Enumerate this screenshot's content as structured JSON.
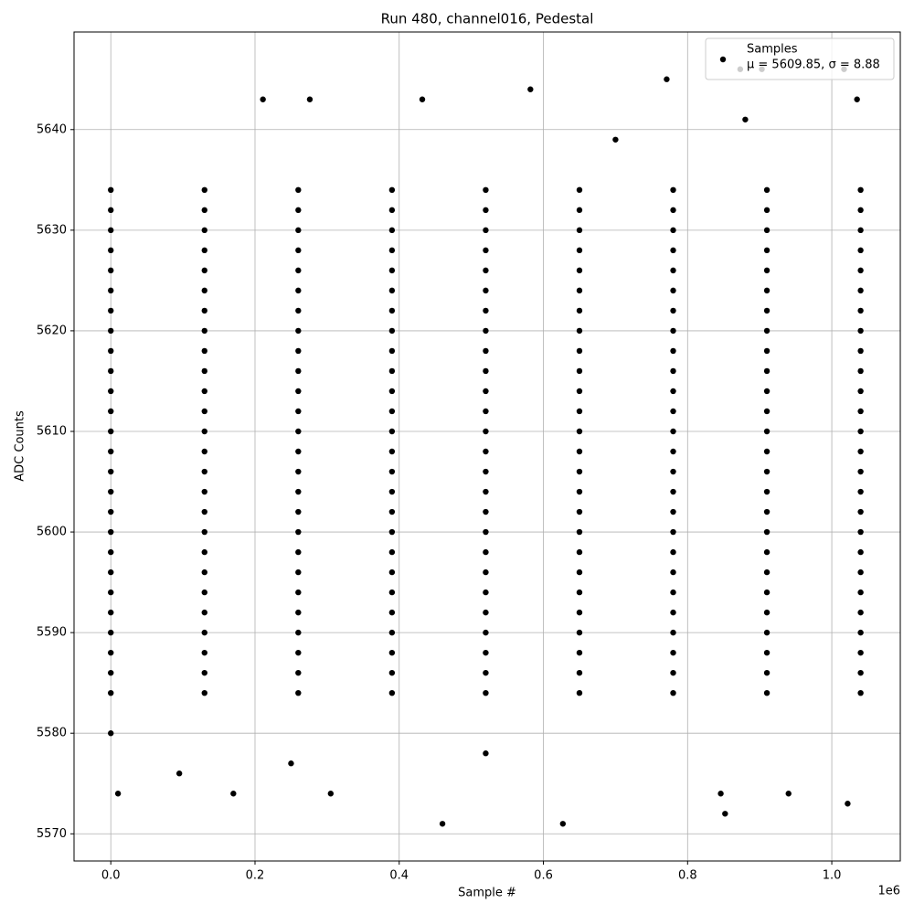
{
  "chart_data": {
    "type": "scatter",
    "title": "Run 480, channel016, Pedestal",
    "xlabel": "Sample #",
    "ylabel": "ADC Counts",
    "x_offset_label": "1e6",
    "xlim": [
      -51000,
      1095000
    ],
    "ylim": [
      5567.3,
      5649.7
    ],
    "xticks": [
      {
        "value": 0,
        "label": "0.0"
      },
      {
        "value": 200000,
        "label": "0.2"
      },
      {
        "value": 400000,
        "label": "0.4"
      },
      {
        "value": 600000,
        "label": "0.6"
      },
      {
        "value": 800000,
        "label": "0.8"
      },
      {
        "value": 1000000,
        "label": "1.0"
      }
    ],
    "yticks": [
      5570,
      5580,
      5590,
      5600,
      5610,
      5620,
      5630,
      5640
    ],
    "grid": true,
    "legend": "upper right",
    "annotation": "μ = 5609.85, σ = 8.88",
    "series": [
      {
        "name": "Samples",
        "color": "#000000",
        "x": [
          10000,
          460000,
          627000,
          852000,
          1022000,
          170000,
          305000,
          940000,
          846000,
          771000,
          582000,
          873000,
          903000,
          1017000,
          211000,
          276000,
          432000,
          1035000,
          0,
          95000,
          250000,
          520000,
          700000,
          880000,
          0,
          130000,
          260000,
          390000,
          520000,
          650000,
          780000,
          910000,
          1040000,
          0,
          130000,
          260000,
          390000,
          520000,
          650000,
          780000,
          910000,
          1040000,
          0,
          130000,
          260000,
          390000,
          520000,
          650000,
          780000,
          910000,
          1040000,
          0,
          130000,
          260000,
          390000,
          520000,
          650000,
          780000,
          910000,
          1040000,
          0,
          130000,
          260000,
          390000,
          520000,
          650000,
          780000,
          910000,
          1040000,
          0,
          130000,
          260000,
          390000,
          520000,
          650000,
          780000,
          910000,
          1040000,
          0,
          130000,
          260000,
          390000,
          520000,
          650000,
          780000,
          910000,
          1040000,
          0,
          130000,
          260000,
          390000,
          520000,
          650000,
          780000,
          910000,
          1040000,
          0,
          130000,
          260000,
          390000,
          520000,
          650000,
          780000,
          910000,
          1040000,
          0,
          130000,
          260000,
          390000,
          520000,
          650000,
          780000,
          910000,
          1040000,
          0,
          130000,
          260000,
          390000,
          520000,
          650000,
          780000,
          910000,
          1040000,
          0,
          130000,
          260000,
          390000,
          520000,
          650000,
          780000,
          910000,
          1040000,
          0,
          130000,
          260000,
          390000,
          520000,
          650000,
          780000,
          910000,
          1040000,
          0,
          130000,
          260000,
          390000,
          520000,
          650000,
          780000,
          910000,
          1040000,
          0,
          130000,
          260000,
          390000,
          520000,
          650000,
          780000,
          910000,
          1040000,
          0,
          130000,
          260000,
          390000,
          520000,
          650000,
          780000,
          910000,
          1040000,
          0,
          130000,
          260000,
          390000,
          520000,
          650000,
          780000,
          910000,
          1040000,
          0,
          130000,
          260000,
          390000,
          520000,
          650000,
          780000,
          910000,
          1040000,
          0,
          130000,
          260000,
          390000,
          520000,
          650000,
          780000,
          910000,
          1040000,
          0,
          130000,
          260000,
          390000,
          520000,
          650000,
          780000,
          910000,
          1040000,
          0,
          130000,
          260000,
          390000,
          520000,
          650000,
          780000,
          910000,
          1040000,
          0,
          130000,
          260000,
          390000,
          520000,
          650000,
          780000,
          910000,
          1040000,
          0,
          130000,
          260000,
          390000,
          520000,
          650000,
          780000,
          910000,
          1040000,
          0,
          130000,
          260000,
          390000,
          520000,
          650000,
          780000,
          910000,
          1040000,
          0,
          130000,
          260000,
          390000,
          520000,
          650000,
          780000,
          910000,
          1040000,
          0,
          130000,
          260000,
          390000,
          520000,
          650000,
          780000,
          910000,
          1040000
        ],
        "values": [
          5574,
          5571,
          5571,
          5572,
          5573,
          5574,
          5574,
          5574,
          5574,
          5645,
          5644,
          5646,
          5646,
          5646,
          5643,
          5643,
          5643,
          5643,
          5580,
          5576,
          5577,
          5578,
          5639,
          5641,
          5584,
          5584,
          5584,
          5584,
          5584,
          5584,
          5584,
          5584,
          5584,
          5586,
          5586,
          5586,
          5586,
          5586,
          5586,
          5586,
          5586,
          5586,
          5588,
          5588,
          5588,
          5588,
          5588,
          5588,
          5588,
          5588,
          5588,
          5590,
          5590,
          5590,
          5590,
          5590,
          5590,
          5590,
          5590,
          5590,
          5592,
          5592,
          5592,
          5592,
          5592,
          5592,
          5592,
          5592,
          5592,
          5594,
          5594,
          5594,
          5594,
          5594,
          5594,
          5594,
          5594,
          5594,
          5596,
          5596,
          5596,
          5596,
          5596,
          5596,
          5596,
          5596,
          5596,
          5598,
          5598,
          5598,
          5598,
          5598,
          5598,
          5598,
          5598,
          5598,
          5600,
          5600,
          5600,
          5600,
          5600,
          5600,
          5600,
          5600,
          5600,
          5602,
          5602,
          5602,
          5602,
          5602,
          5602,
          5602,
          5602,
          5602,
          5604,
          5604,
          5604,
          5604,
          5604,
          5604,
          5604,
          5604,
          5604,
          5606,
          5606,
          5606,
          5606,
          5606,
          5606,
          5606,
          5606,
          5606,
          5608,
          5608,
          5608,
          5608,
          5608,
          5608,
          5608,
          5608,
          5608,
          5610,
          5610,
          5610,
          5610,
          5610,
          5610,
          5610,
          5610,
          5610,
          5612,
          5612,
          5612,
          5612,
          5612,
          5612,
          5612,
          5612,
          5612,
          5614,
          5614,
          5614,
          5614,
          5614,
          5614,
          5614,
          5614,
          5614,
          5616,
          5616,
          5616,
          5616,
          5616,
          5616,
          5616,
          5616,
          5616,
          5618,
          5618,
          5618,
          5618,
          5618,
          5618,
          5618,
          5618,
          5618,
          5620,
          5620,
          5620,
          5620,
          5620,
          5620,
          5620,
          5620,
          5620,
          5622,
          5622,
          5622,
          5622,
          5622,
          5622,
          5622,
          5622,
          5622,
          5624,
          5624,
          5624,
          5624,
          5624,
          5624,
          5624,
          5624,
          5624,
          5626,
          5626,
          5626,
          5626,
          5626,
          5626,
          5626,
          5626,
          5626,
          5628,
          5628,
          5628,
          5628,
          5628,
          5628,
          5628,
          5628,
          5628,
          5630,
          5630,
          5630,
          5630,
          5630,
          5630,
          5630,
          5630,
          5630,
          5632,
          5632,
          5632,
          5632,
          5632,
          5632,
          5632,
          5632,
          5632,
          5634,
          5634,
          5634,
          5634,
          5634,
          5634,
          5634,
          5634,
          5634
        ]
      }
    ]
  }
}
